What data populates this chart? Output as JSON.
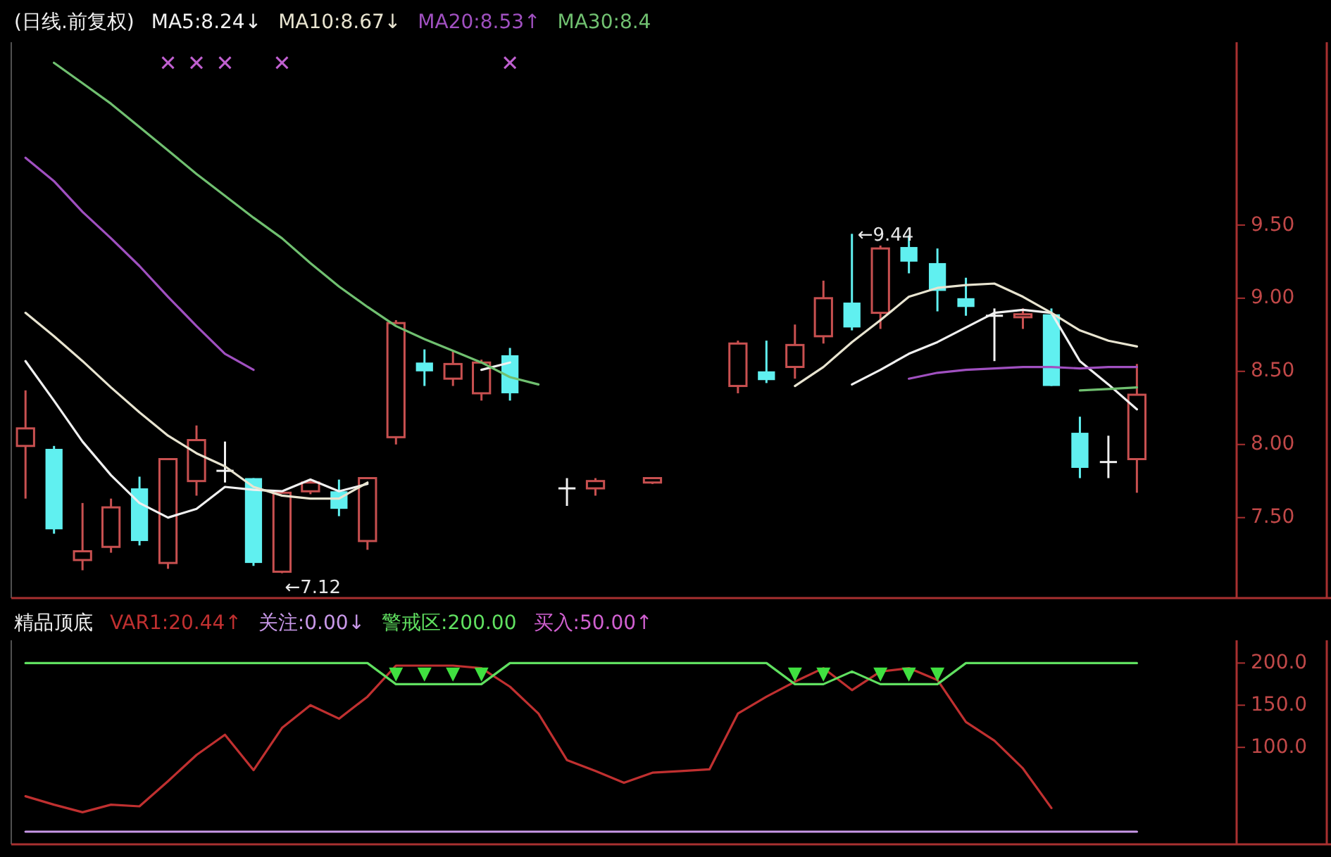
{
  "chart_data": [
    {
      "type": "candlestick",
      "title": "(日线.前复权)",
      "categories": [
        null,
        null,
        null,
        null,
        null,
        null,
        null,
        null,
        null,
        null,
        null,
        null,
        null,
        null,
        null,
        null,
        null,
        null,
        null,
        null,
        null,
        null,
        null,
        null,
        null,
        null,
        null,
        null,
        null,
        null,
        null,
        null,
        null,
        null,
        null,
        null,
        null,
        null,
        null,
        null
      ],
      "ohlc": [
        [
          7.99,
          8.37,
          7.63,
          8.11
        ],
        [
          7.97,
          7.99,
          7.39,
          7.42
        ],
        [
          7.21,
          7.6,
          7.14,
          7.27
        ],
        [
          7.3,
          7.63,
          7.26,
          7.57
        ],
        [
          7.7,
          7.78,
          7.31,
          7.34
        ],
        [
          7.19,
          7.9,
          7.15,
          7.9
        ],
        [
          7.75,
          8.13,
          7.65,
          8.03
        ],
        [
          7.82,
          8.02,
          7.74,
          7.82
        ],
        [
          7.77,
          7.77,
          7.17,
          7.19
        ],
        [
          7.13,
          7.67,
          7.12,
          7.67
        ],
        [
          7.68,
          7.76,
          7.66,
          7.74
        ],
        [
          7.68,
          7.76,
          7.51,
          7.56
        ],
        [
          7.34,
          7.77,
          7.28,
          7.77
        ],
        [
          8.05,
          8.85,
          8.0,
          8.83
        ],
        [
          8.56,
          8.65,
          8.4,
          8.5
        ],
        [
          8.45,
          8.64,
          8.4,
          8.55
        ],
        [
          8.35,
          8.58,
          8.3,
          8.56
        ],
        [
          8.61,
          8.66,
          8.3,
          8.35
        ],
        null,
        [
          7.7,
          7.77,
          7.58,
          7.7
        ],
        [
          7.7,
          7.77,
          7.65,
          7.75
        ],
        null,
        [
          7.74,
          7.77,
          7.73,
          7.77
        ],
        null,
        null,
        [
          8.4,
          8.71,
          8.35,
          8.69
        ],
        [
          8.5,
          8.71,
          8.42,
          8.44
        ],
        [
          8.53,
          8.82,
          8.45,
          8.68
        ],
        [
          8.74,
          9.12,
          8.69,
          9.0
        ],
        [
          8.97,
          9.44,
          8.78,
          8.8
        ],
        [
          8.9,
          9.36,
          8.79,
          9.34
        ],
        [
          9.35,
          9.43,
          9.17,
          9.25
        ],
        [
          9.24,
          9.34,
          8.91,
          9.05
        ],
        [
          9.0,
          9.14,
          8.88,
          8.94
        ],
        [
          8.88,
          8.93,
          8.57,
          8.88
        ],
        [
          8.87,
          8.93,
          8.79,
          8.89
        ],
        [
          8.89,
          8.93,
          8.4,
          8.4
        ],
        [
          8.08,
          8.19,
          7.77,
          7.84
        ],
        [
          7.88,
          8.06,
          7.77,
          7.88
        ],
        [
          7.9,
          8.55,
          7.67,
          8.34
        ]
      ],
      "series": [
        {
          "type": "line",
          "name": "MA5:8.24↓",
          "color": "#f0f0f0",
          "values": [
            8.57,
            8.3,
            8.02,
            7.79,
            7.6,
            7.5,
            7.56,
            7.71,
            7.69,
            7.68,
            7.76,
            7.68,
            7.73,
            null,
            null,
            null,
            8.51,
            8.56,
            null,
            null,
            null,
            null,
            null,
            null,
            null,
            null,
            null,
            null,
            null,
            8.41,
            8.51,
            8.62,
            8.7,
            8.8,
            8.9,
            8.92,
            8.9,
            8.57,
            8.41,
            8.24
          ]
        },
        {
          "type": "line",
          "name": "MA10:8.67↓",
          "color": "#e8e4d0",
          "values": [
            8.9,
            8.74,
            8.57,
            8.39,
            8.22,
            8.06,
            7.94,
            7.85,
            7.71,
            7.65,
            7.63,
            7.63,
            7.74,
            null,
            null,
            null,
            null,
            null,
            null,
            null,
            null,
            null,
            null,
            null,
            null,
            null,
            null,
            8.4,
            8.53,
            8.7,
            8.85,
            9.01,
            9.07,
            9.09,
            9.1,
            9.01,
            8.9,
            8.78,
            8.71,
            8.67
          ]
        },
        {
          "type": "line",
          "name": "MA20:8.53↑",
          "color": "#a050c0",
          "values": [
            9.96,
            9.8,
            9.59,
            9.41,
            9.22,
            9.01,
            8.81,
            8.62,
            8.51,
            null,
            null,
            null,
            null,
            null,
            null,
            null,
            null,
            null,
            null,
            null,
            null,
            null,
            null,
            null,
            null,
            null,
            null,
            null,
            null,
            null,
            null,
            8.45,
            8.49,
            8.51,
            8.52,
            8.53,
            8.53,
            8.52,
            8.53,
            8.53
          ]
        },
        {
          "type": "line",
          "name": "MA30:8.4",
          "color": "#70c070",
          "values": [
            null,
            10.61,
            10.47,
            10.33,
            10.17,
            10.01,
            9.85,
            9.7,
            9.55,
            9.41,
            9.24,
            9.08,
            8.94,
            8.81,
            8.72,
            8.64,
            8.56,
            8.46,
            8.41,
            null,
            null,
            null,
            null,
            null,
            null,
            null,
            null,
            null,
            null,
            null,
            null,
            null,
            null,
            null,
            null,
            null,
            null,
            8.37,
            8.38,
            8.39
          ]
        },
        {
          "type": "scatter",
          "marker": "cross",
          "color": "#c060d0",
          "values": [
            null,
            null,
            null,
            null,
            null,
            10.61,
            10.61,
            10.61,
            null,
            10.61,
            null,
            null,
            null,
            null,
            null,
            null,
            null,
            10.61,
            null,
            null,
            null,
            null,
            null,
            null,
            null,
            null,
            null,
            null,
            null,
            null,
            null,
            null,
            null,
            null,
            null,
            null,
            null,
            null,
            null,
            null
          ]
        }
      ],
      "ylim": [
        6.95,
        10.75
      ],
      "yticks": [
        {
          "value": 7.5,
          "label": "7.50"
        },
        {
          "value": 8,
          "label": "8.00"
        },
        {
          "value": 8.5,
          "label": "8.50"
        },
        {
          "value": 9,
          "label": "9.00"
        },
        {
          "value": 9.5,
          "label": "9.50"
        }
      ],
      "tick_labels": "y",
      "legend": "top left",
      "annotations": [
        "←7.12",
        "←9.44"
      ]
    },
    {
      "type": "line",
      "title": "精品顶底",
      "categories": [
        null,
        null,
        null,
        null,
        null,
        null,
        null,
        null,
        null,
        null,
        null,
        null,
        null,
        null,
        null,
        null,
        null,
        null,
        null,
        null,
        null,
        null,
        null,
        null,
        null,
        null,
        null,
        null,
        null,
        null,
        null,
        null,
        null,
        null,
        null,
        null,
        null,
        null,
        null,
        null
      ],
      "series": [
        {
          "type": "line",
          "name": "VAR1:20.44↑",
          "color": "#c03030",
          "values": [
            42,
            32,
            23,
            32,
            30,
            60,
            91,
            115,
            73,
            123,
            150,
            134,
            160,
            197,
            197,
            197,
            194,
            172,
            140,
            85,
            72,
            58,
            70,
            72,
            74,
            140,
            160,
            178,
            194,
            168,
            190,
            194,
            180,
            130,
            108,
            75,
            28,
            null,
            null,
            null
          ]
        },
        {
          "type": "line",
          "name": "关注:0.00↓",
          "color": "#c898e8",
          "values": [
            0,
            0,
            0,
            0,
            0,
            0,
            0,
            0,
            0,
            0,
            0,
            0,
            0,
            0,
            0,
            0,
            0,
            0,
            0,
            0,
            0,
            0,
            0,
            0,
            0,
            0,
            0,
            0,
            0,
            0,
            0,
            0,
            0,
            0,
            0,
            0,
            0,
            0,
            0,
            0
          ]
        },
        {
          "type": "line",
          "name": "警戒区:200.00",
          "color": "#60e060",
          "values": [
            200,
            200,
            200,
            200,
            200,
            200,
            200,
            200,
            200,
            200,
            200,
            200,
            200,
            175,
            175,
            175,
            175,
            200,
            200,
            200,
            200,
            200,
            200,
            200,
            200,
            200,
            200,
            175,
            175,
            190,
            175,
            175,
            175,
            200,
            200,
            200,
            200,
            200,
            200,
            200
          ]
        },
        {
          "type": "scatter",
          "marker": "triangle",
          "color": "#40e040",
          "values": [
            null,
            null,
            null,
            null,
            null,
            null,
            null,
            null,
            null,
            null,
            null,
            null,
            null,
            188,
            188,
            188,
            188,
            null,
            null,
            null,
            null,
            null,
            null,
            null,
            null,
            null,
            null,
            188,
            188,
            null,
            188,
            188,
            188,
            null,
            null,
            null,
            null,
            null,
            null,
            null
          ]
        }
      ],
      "ylim": [
        -15,
        227
      ],
      "yticks": [
        {
          "value": 100,
          "label": "100.0"
        },
        {
          "value": 150,
          "label": "150.0"
        },
        {
          "value": 200,
          "label": "200.0"
        }
      ],
      "tick_labels": "y",
      "legend": "top left",
      "annotations": [
        "买入:50.00↑"
      ]
    }
  ]
}
